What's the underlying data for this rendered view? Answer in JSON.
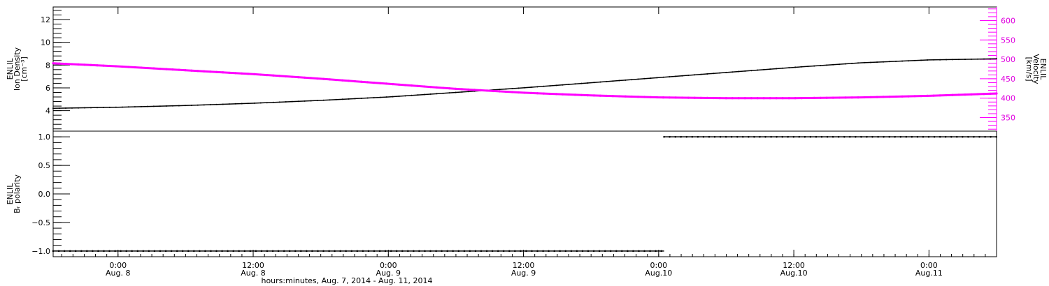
{
  "colors": {
    "density": "#000000",
    "velocity": "#ff00ff",
    "polarity": "#000000",
    "axis": "#000000"
  },
  "chart_data": [
    {
      "type": "line",
      "panel": "top",
      "left_axis": {
        "lines": [
          "ENLIL",
          "Ion Density",
          "[cm⁻³]"
        ],
        "ylim": [
          2.2,
          13.1
        ],
        "ticks": [
          4,
          6,
          8,
          10,
          12
        ],
        "tick_labels": [
          "4",
          "6",
          "8",
          "10",
          "12"
        ]
      },
      "right_axis": {
        "lines": [
          "ENLIL",
          "Velocity",
          "[km/s]"
        ],
        "ylim": [
          315,
          635
        ],
        "ticks": [
          350,
          400,
          450,
          500,
          550,
          600
        ],
        "tick_labels": [
          "350",
          "400",
          "450",
          "500",
          "550",
          "600"
        ],
        "color": "#ff00ff"
      },
      "series": [
        {
          "axis": "left",
          "color": "#000000",
          "x": [
            -0.24,
            0.0,
            0.25,
            0.5,
            0.75,
            1.0,
            1.25,
            1.5,
            1.75,
            2.0,
            2.25,
            2.5,
            2.75,
            3.0,
            3.25
          ],
          "values": [
            4.2,
            4.3,
            4.45,
            4.65,
            4.9,
            5.2,
            5.6,
            6.0,
            6.45,
            6.9,
            7.35,
            7.8,
            8.2,
            8.45,
            8.55
          ]
        },
        {
          "axis": "right",
          "color": "#ff00ff",
          "x": [
            -0.24,
            0.0,
            0.25,
            0.5,
            0.75,
            1.0,
            1.25,
            1.5,
            1.75,
            2.0,
            2.25,
            2.5,
            2.75,
            3.0,
            3.25
          ],
          "values": [
            490,
            482,
            472,
            462,
            450,
            437,
            424,
            414,
            407,
            402,
            400,
            400,
            402,
            406,
            412
          ]
        }
      ]
    },
    {
      "type": "scatter",
      "panel": "bottom",
      "left_axis": {
        "lines": [
          "ENLIL",
          "Bᵣ polarity"
        ],
        "ylim": [
          -1.1,
          1.1
        ],
        "ticks": [
          -1.0,
          -0.5,
          0.0,
          0.5,
          1.0
        ],
        "tick_labels": [
          "−1.0",
          "−0.5",
          "0.0",
          "0.5",
          "1.0"
        ]
      },
      "series": [
        {
          "color": "#000000",
          "x_range": [
            -0.24,
            2.02
          ],
          "value": -1.0
        },
        {
          "color": "#000000",
          "x_range": [
            2.02,
            3.25
          ],
          "value": 1.0
        }
      ]
    }
  ],
  "x_axis": {
    "range": [
      -0.24,
      3.25
    ],
    "ticks": [
      {
        "x": 0.0,
        "time": "0:00",
        "day": "Aug. 8"
      },
      {
        "x": 0.5,
        "time": "12:00",
        "day": "Aug. 8"
      },
      {
        "x": 1.0,
        "time": "0:00",
        "day": "Aug. 9"
      },
      {
        "x": 1.5,
        "time": "12:00",
        "day": "Aug. 9"
      },
      {
        "x": 2.0,
        "time": "0:00",
        "day": "Aug.10"
      },
      {
        "x": 2.5,
        "time": "12:00",
        "day": "Aug.10"
      },
      {
        "x": 3.0,
        "time": "0:00",
        "day": "Aug.11"
      }
    ],
    "title": "hours:minutes, Aug.  7, 2014 - Aug. 11, 2014"
  }
}
